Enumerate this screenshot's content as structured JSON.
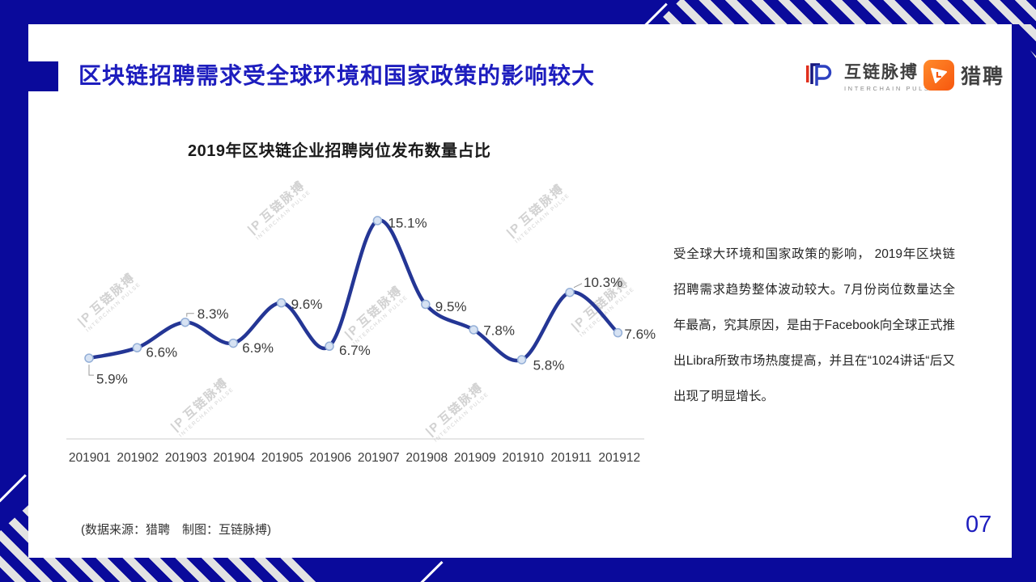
{
  "page": {
    "title": "区块链招聘需求受全球环境和国家政策的影响较大",
    "page_number": "07",
    "source_note": "(数据来源：猎聘　制图：互链脉搏)"
  },
  "logos": {
    "interchain_pulse": {
      "name": "互链脉搏",
      "subtitle": "INTERCHAIN PULSE"
    },
    "liepin": {
      "name": "猎聘"
    }
  },
  "analysis": {
    "text": "受全球大环境和国家政策的影响， 2019年区块链招聘需求趋势整体波动较大。7月份岗位数量达全年最高，究其原因，是由于Facebook向全球正式推出Libra所致市场热度提高，并且在“1024讲话“后又出现了明显增长。"
  },
  "watermark": {
    "mark": "|P",
    "text": "互链脉搏",
    "subtext": "INTERCHAIN PULSE"
  },
  "chart_data": {
    "type": "line",
    "title": "2019年区块链企业招聘岗位发布数量占比",
    "categories": [
      "201901",
      "201902",
      "201903",
      "201904",
      "201905",
      "201906",
      "201907",
      "201908",
      "201909",
      "201910",
      "201911",
      "201912"
    ],
    "values": [
      5.9,
      6.6,
      8.3,
      6.9,
      9.6,
      6.7,
      15.1,
      9.5,
      7.8,
      5.8,
      10.3,
      7.6
    ],
    "labels": [
      "5.9%",
      "6.6%",
      "8.3%",
      "6.9%",
      "9.6%",
      "6.7%",
      "15.1%",
      "9.5%",
      "7.8%",
      "5.8%",
      "10.3%",
      "7.6%"
    ],
    "unit": "%",
    "ylim": [
      0,
      16
    ],
    "grid": false,
    "legend": "none",
    "smooth": true,
    "line_color": "#243695",
    "marker_fill": "#d6e2f3",
    "marker_stroke": "#94afd7",
    "axis_color": "#cccccc",
    "label_color": "#3b3b3b"
  },
  "colors": {
    "frame_blue": "#0a0a9b",
    "title_blue": "#1d1dbe",
    "stripe_gray": "#e3e3e3",
    "liepin_orange": "#f7570e",
    "logo_red": "#e0301e"
  }
}
